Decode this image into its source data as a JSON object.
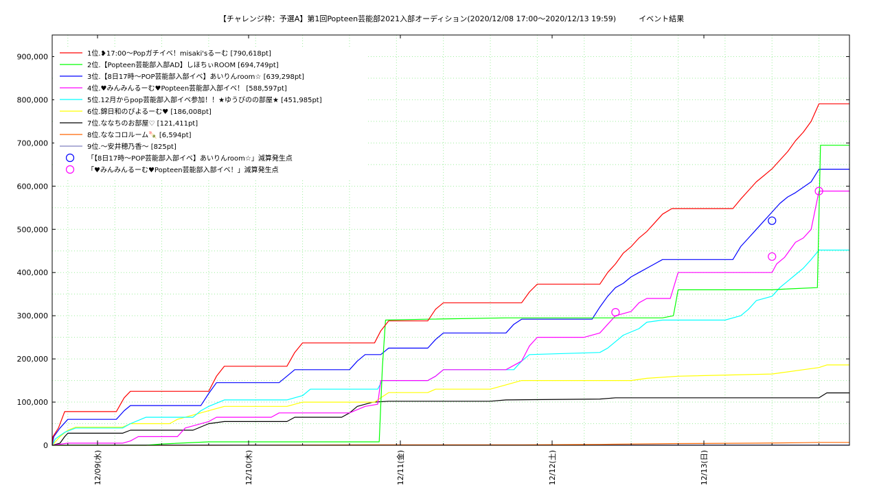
{
  "chart_data": {
    "type": "line",
    "title": "【チャレンジ枠：予選A】第1回Popteen芸能部2021入部オーディション(2020/12/08 17:00～2020/12/13 19:59)　　　イベント結果",
    "xlabel": "",
    "ylabel": "",
    "xlim": [
      "2020/12/08 17:00",
      "2020/12/13 19:59"
    ],
    "ylim": [
      0,
      950000
    ],
    "grid": true,
    "legend_position": "top-left",
    "x_ticks": [
      "12/09(水)",
      "12/10(木)",
      "12/11(金)",
      "12/12(土)",
      "12/13(日)"
    ],
    "y_ticks": [
      "0",
      "100,000",
      "200,000",
      "300,000",
      "400,000",
      "500,000",
      "600,000",
      "700,000",
      "800,000",
      "900,000"
    ],
    "series": [
      {
        "name": "1位.❥17:00～Popガチイベ！misaki'sるーむ [790,618pt]",
        "color": "#ff0000",
        "final": 790618,
        "points": [
          [
            0,
            0
          ],
          [
            0.05,
            20000
          ],
          [
            0.4,
            40000
          ],
          [
            0.8,
            78000
          ],
          [
            4.1,
            78000
          ],
          [
            4.6,
            110000
          ],
          [
            5,
            125000
          ],
          [
            10,
            125000
          ],
          [
            10.5,
            160000
          ],
          [
            11,
            183000
          ],
          [
            15,
            183000
          ],
          [
            15.5,
            215000
          ],
          [
            16,
            237000
          ],
          [
            20.6,
            237000
          ],
          [
            21,
            265000
          ],
          [
            21.5,
            288000
          ],
          [
            24,
            288000
          ],
          [
            24.5,
            315000
          ],
          [
            25,
            330000
          ],
          [
            30,
            330000
          ],
          [
            30.5,
            355000
          ],
          [
            31,
            373000
          ],
          [
            35,
            373000
          ],
          [
            35.5,
            400000
          ],
          [
            36,
            420000
          ],
          [
            36.5,
            445000
          ],
          [
            37,
            460000
          ],
          [
            37.5,
            480000
          ],
          [
            38,
            495000
          ],
          [
            38.5,
            515000
          ],
          [
            39,
            535000
          ],
          [
            39.6,
            548000
          ],
          [
            43.5,
            548000
          ],
          [
            44,
            570000
          ],
          [
            44.5,
            590000
          ],
          [
            45,
            610000
          ],
          [
            45.5,
            625000
          ],
          [
            46,
            640000
          ],
          [
            46.5,
            660000
          ],
          [
            47,
            680000
          ],
          [
            47.5,
            705000
          ],
          [
            48,
            725000
          ],
          [
            48.5,
            750000
          ],
          [
            49,
            790618
          ],
          [
            50.95,
            790618
          ]
        ]
      },
      {
        "name": "2位.【Popteen芸能部入部AD】しほちぃROOM [694,749pt]",
        "color": "#00ff00",
        "final": 694749,
        "points": [
          [
            0,
            0
          ],
          [
            6,
            0
          ],
          [
            7,
            3000
          ],
          [
            10,
            8000
          ],
          [
            20.9,
            8000
          ],
          [
            21.1,
            180000
          ],
          [
            21.3,
            290000
          ],
          [
            24,
            292000
          ],
          [
            29,
            295000
          ],
          [
            35,
            295000
          ],
          [
            39,
            295000
          ],
          [
            39.7,
            300000
          ],
          [
            40,
            360000
          ],
          [
            46,
            360000
          ],
          [
            47,
            362000
          ],
          [
            48.9,
            365000
          ],
          [
            49.1,
            694749
          ],
          [
            50.95,
            694749
          ]
        ]
      },
      {
        "name": "3位.【8日17時～POP芸能部入部イベ】あいりんroom☆ [639,298pt]",
        "color": "#0000ff",
        "final": 639298,
        "points": [
          [
            0,
            0
          ],
          [
            0.1,
            20000
          ],
          [
            0.5,
            40000
          ],
          [
            1,
            60000
          ],
          [
            4.1,
            60000
          ],
          [
            4.6,
            80000
          ],
          [
            5,
            92000
          ],
          [
            9.5,
            92000
          ],
          [
            10,
            120000
          ],
          [
            10.5,
            145000
          ],
          [
            14.5,
            145000
          ],
          [
            15,
            160000
          ],
          [
            15.5,
            175000
          ],
          [
            19,
            175000
          ],
          [
            19.5,
            195000
          ],
          [
            20,
            210000
          ],
          [
            21,
            210000
          ],
          [
            21.5,
            225000
          ],
          [
            24,
            225000
          ],
          [
            24.5,
            245000
          ],
          [
            25,
            260000
          ],
          [
            29,
            260000
          ],
          [
            29.5,
            280000
          ],
          [
            30,
            292000
          ],
          [
            34.5,
            292000
          ],
          [
            35,
            320000
          ],
          [
            35.5,
            345000
          ],
          [
            36,
            365000
          ],
          [
            36.5,
            375000
          ],
          [
            37,
            390000
          ],
          [
            37.5,
            400000
          ],
          [
            38.5,
            420000
          ],
          [
            39,
            430000
          ],
          [
            43.5,
            430000
          ],
          [
            44,
            460000
          ],
          [
            44.5,
            480000
          ],
          [
            45,
            500000
          ],
          [
            45.5,
            520000
          ],
          [
            46,
            540000
          ],
          [
            46.5,
            560000
          ],
          [
            47,
            575000
          ],
          [
            47.5,
            585000
          ],
          [
            48.5,
            610000
          ],
          [
            49,
            639298
          ],
          [
            50.95,
            639298
          ]
        ]
      },
      {
        "name": "4位.♥みんみんるーむ♥Popteen芸能部入部イベ！ [588,597pt]",
        "color": "#ff00ff",
        "final": 588597,
        "points": [
          [
            0,
            0
          ],
          [
            1,
            5000
          ],
          [
            4.5,
            5000
          ],
          [
            5,
            10000
          ],
          [
            5.5,
            20000
          ],
          [
            8,
            20000
          ],
          [
            8.5,
            40000
          ],
          [
            9,
            45000
          ],
          [
            10,
            55000
          ],
          [
            10.5,
            65000
          ],
          [
            14,
            65000
          ],
          [
            14.5,
            75000
          ],
          [
            19,
            75000
          ],
          [
            20,
            90000
          ],
          [
            20.8,
            95000
          ],
          [
            21,
            150000
          ],
          [
            24,
            150000
          ],
          [
            24.5,
            160000
          ],
          [
            25,
            175000
          ],
          [
            29,
            175000
          ],
          [
            30,
            195000
          ],
          [
            30.5,
            230000
          ],
          [
            31,
            250000
          ],
          [
            34,
            250000
          ],
          [
            35,
            260000
          ],
          [
            35.5,
            280000
          ],
          [
            36,
            300000
          ],
          [
            37,
            310000
          ],
          [
            37.5,
            330000
          ],
          [
            38,
            340000
          ],
          [
            39.5,
            340000
          ],
          [
            40,
            400000
          ],
          [
            46,
            400000
          ],
          [
            46.3,
            420000
          ],
          [
            46.8,
            435000
          ],
          [
            47,
            445000
          ],
          [
            47.5,
            470000
          ],
          [
            48,
            480000
          ],
          [
            48.5,
            500000
          ],
          [
            49,
            588597
          ],
          [
            50.95,
            588597
          ]
        ]
      },
      {
        "name": "5位.12月からpop芸能部入部イベ参加！！★ゆうぴのの部屋★ [451,985pt]",
        "color": "#00ffff",
        "final": 451985,
        "points": [
          [
            0,
            0
          ],
          [
            0.2,
            15000
          ],
          [
            0.8,
            30000
          ],
          [
            1.5,
            40000
          ],
          [
            4.5,
            40000
          ],
          [
            5,
            50000
          ],
          [
            6,
            65000
          ],
          [
            9,
            65000
          ],
          [
            9.5,
            80000
          ],
          [
            10,
            90000
          ],
          [
            11,
            105000
          ],
          [
            15,
            105000
          ],
          [
            16,
            115000
          ],
          [
            16.5,
            130000
          ],
          [
            20.8,
            130000
          ],
          [
            21.1,
            150000
          ],
          [
            24,
            150000
          ],
          [
            24.5,
            160000
          ],
          [
            25,
            175000
          ],
          [
            29.5,
            175000
          ],
          [
            30,
            195000
          ],
          [
            30.5,
            210000
          ],
          [
            35,
            215000
          ],
          [
            35.5,
            225000
          ],
          [
            36,
            240000
          ],
          [
            36.5,
            255000
          ],
          [
            37.5,
            270000
          ],
          [
            38,
            285000
          ],
          [
            39,
            290000
          ],
          [
            43,
            290000
          ],
          [
            44,
            300000
          ],
          [
            44.5,
            315000
          ],
          [
            45,
            335000
          ],
          [
            46,
            345000
          ],
          [
            46.5,
            365000
          ],
          [
            47,
            380000
          ],
          [
            47.5,
            395000
          ],
          [
            48,
            410000
          ],
          [
            48.5,
            430000
          ],
          [
            49,
            451985
          ],
          [
            50.95,
            451985
          ]
        ]
      },
      {
        "name": "6位.錦日和のぴよるーむ♥ [186,008pt]",
        "color": "#ffff00",
        "final": 186008,
        "points": [
          [
            0,
            0
          ],
          [
            0.5,
            20000
          ],
          [
            1,
            35000
          ],
          [
            1.5,
            42000
          ],
          [
            4.5,
            42000
          ],
          [
            5,
            50000
          ],
          [
            7.5,
            50000
          ],
          [
            8,
            60000
          ],
          [
            9,
            70000
          ],
          [
            10,
            80000
          ],
          [
            11,
            90000
          ],
          [
            15,
            90000
          ],
          [
            16,
            100000
          ],
          [
            20.6,
            100000
          ],
          [
            21,
            110000
          ],
          [
            21.5,
            122000
          ],
          [
            24,
            122000
          ],
          [
            24.5,
            130000
          ],
          [
            28,
            130000
          ],
          [
            29,
            140000
          ],
          [
            30,
            150000
          ],
          [
            37,
            150000
          ],
          [
            38,
            155000
          ],
          [
            40,
            160000
          ],
          [
            46,
            165000
          ],
          [
            47,
            170000
          ],
          [
            48,
            175000
          ],
          [
            49,
            180000
          ],
          [
            49.5,
            186008
          ],
          [
            50.95,
            186008
          ]
        ]
      },
      {
        "name": "7位.ななちのお部屋♡ [121,411pt]",
        "color": "#000000",
        "final": 121411,
        "points": [
          [
            0,
            0
          ],
          [
            0.5,
            5000
          ],
          [
            0.8,
            20000
          ],
          [
            1,
            28000
          ],
          [
            4.5,
            28000
          ],
          [
            5,
            35000
          ],
          [
            9,
            35000
          ],
          [
            10,
            50000
          ],
          [
            11,
            55000
          ],
          [
            15,
            55000
          ],
          [
            15.5,
            65000
          ],
          [
            18.5,
            65000
          ],
          [
            19,
            75000
          ],
          [
            19.5,
            90000
          ],
          [
            20.5,
            100000
          ],
          [
            21.5,
            102000
          ],
          [
            28,
            102000
          ],
          [
            29,
            105000
          ],
          [
            35,
            107000
          ],
          [
            36,
            110000
          ],
          [
            49,
            110000
          ],
          [
            49.5,
            121411
          ],
          [
            50.95,
            121411
          ]
        ]
      },
      {
        "name": "8位.ななコロルーム🍡 [6,594pt]",
        "color": "#ff6600",
        "final": 6594,
        "points": [
          [
            0,
            0
          ],
          [
            10,
            0
          ],
          [
            20,
            1000
          ],
          [
            30,
            1000
          ],
          [
            35,
            2000
          ],
          [
            40,
            4000
          ],
          [
            45,
            5000
          ],
          [
            48,
            6000
          ],
          [
            49,
            6594
          ],
          [
            50.95,
            6594
          ]
        ]
      },
      {
        "name": "9位.～安井穂乃香～ [825pt]",
        "color": "#7f7fbf",
        "final": 825,
        "points": [
          [
            0,
            0
          ],
          [
            1,
            825
          ],
          [
            50.95,
            825
          ]
        ]
      }
    ],
    "markers": [
      {
        "name": "「【8日17時～POP芸能部入部イベ】あいりんroom☆」減算発生点",
        "color": "#0000ff",
        "points": [
          [
            46,
            520000
          ]
        ]
      },
      {
        "name": "「♥みんみんるーむ♥Popteen芸能部入部イベ！」減算発生点",
        "color": "#ff00ff",
        "points": [
          [
            36,
            308000
          ],
          [
            46,
            437000
          ],
          [
            49,
            588597
          ]
        ]
      }
    ]
  }
}
